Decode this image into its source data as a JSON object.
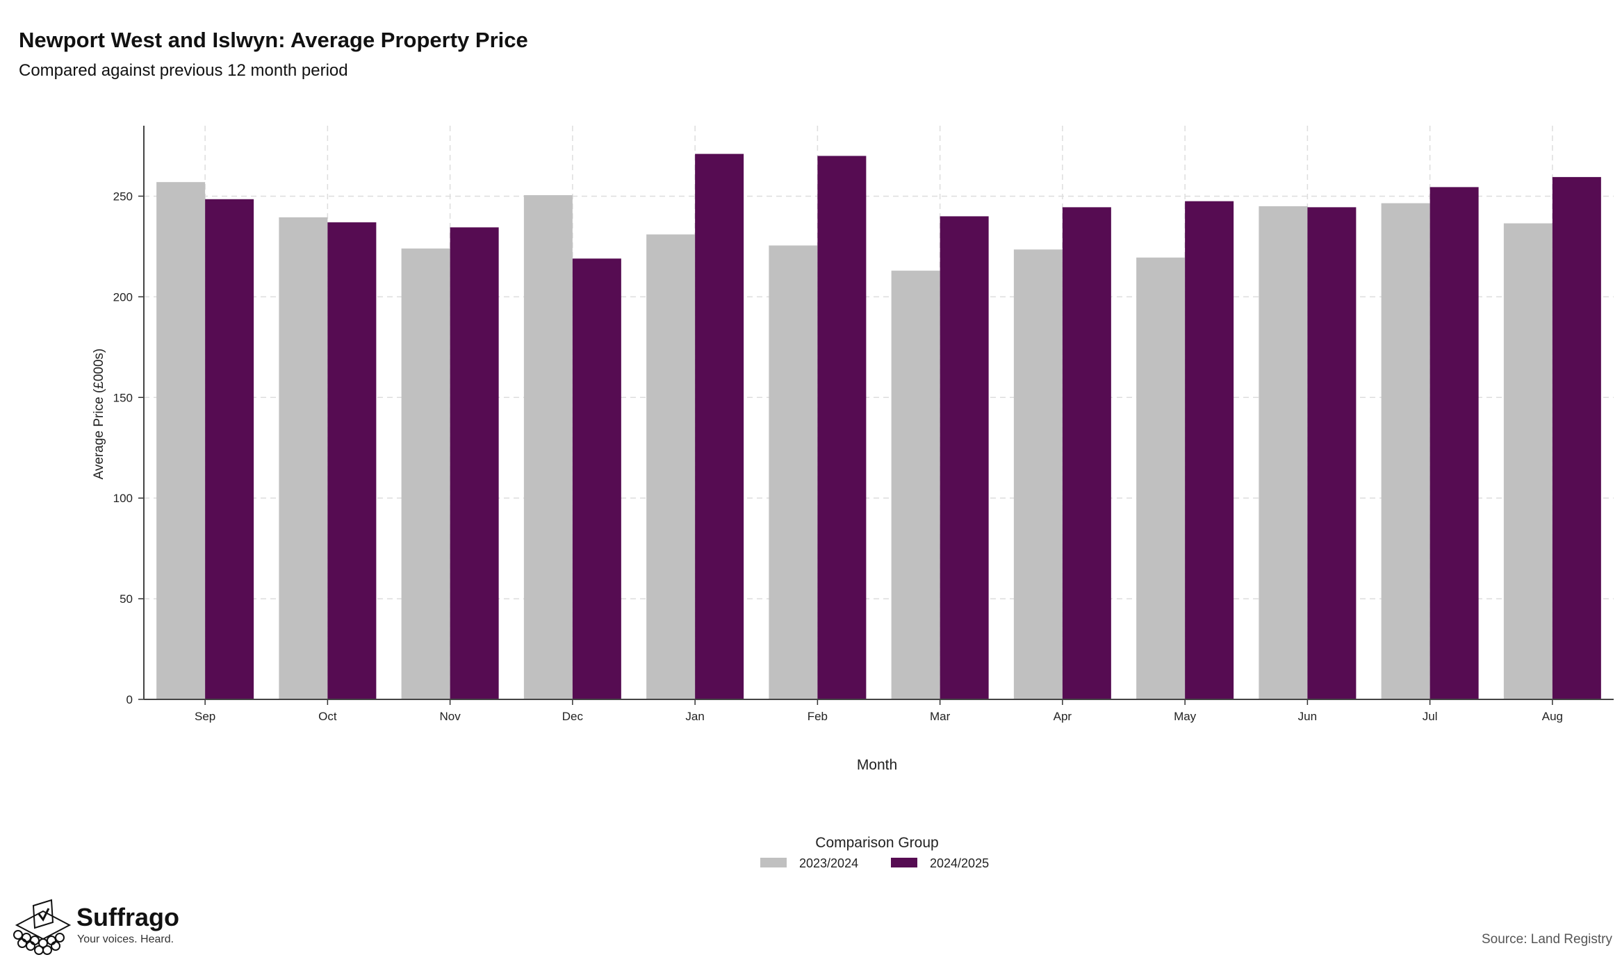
{
  "title": "Newport West and Islwyn: Average Property Price",
  "subtitle": "Compared against previous 12 month period",
  "brand": {
    "name": "Suffrago",
    "tagline": "Your voices. Heard."
  },
  "source": "Source: Land Registry",
  "colors": {
    "series_2023_2024": "#c0c0c0",
    "series_2024_2025": "#560c52"
  },
  "chart_data": {
    "type": "bar",
    "xlabel": "Month",
    "ylabel": "Average Price (£000s)",
    "categories": [
      "Sep",
      "Oct",
      "Nov",
      "Dec",
      "Jan",
      "Feb",
      "Mar",
      "Apr",
      "May",
      "Jun",
      "Jul",
      "Aug"
    ],
    "series": [
      {
        "name": "2023/2024",
        "values": [
          257,
          239.5,
          224,
          250.5,
          231,
          225.5,
          213,
          223.5,
          219.5,
          245,
          246.5,
          236.5
        ]
      },
      {
        "name": "2024/2025",
        "values": [
          248.5,
          237,
          234.5,
          219,
          271,
          270,
          240,
          244.5,
          247.5,
          244.5,
          254.5,
          259.5
        ]
      }
    ],
    "ylim": [
      0,
      285
    ],
    "yticks": [
      0,
      50,
      100,
      150,
      200,
      250
    ],
    "grid": true,
    "legend": {
      "title": "Comparison Group",
      "placement": "bottom-center"
    }
  }
}
